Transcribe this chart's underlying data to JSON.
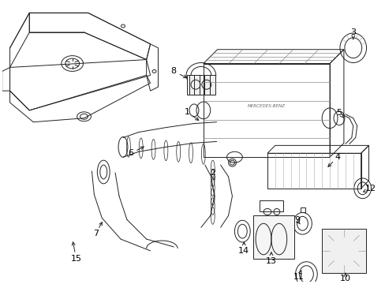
{
  "bg_color": "#ffffff",
  "line_color": "#222222",
  "label_color": "#000000",
  "fig_width": 4.89,
  "fig_height": 3.6,
  "dpi": 100,
  "lw": 0.7,
  "label_fontsize": 8
}
